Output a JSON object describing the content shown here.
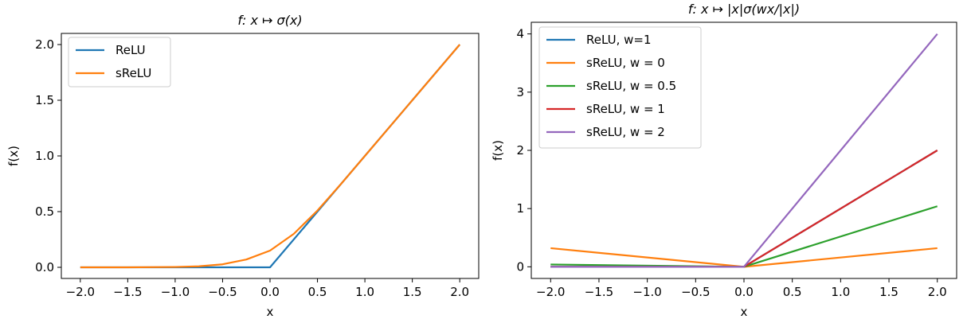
{
  "chart_data": [
    {
      "type": "line",
      "title": "f: x ↦ σ(x)",
      "xlabel": "x",
      "ylabel": "f(x)",
      "xlim": [
        -2.2,
        2.2
      ],
      "ylim": [
        -0.1,
        2.1
      ],
      "xticks": [
        -2.0,
        -1.5,
        -1.0,
        -0.5,
        0.0,
        0.5,
        1.0,
        1.5,
        2.0
      ],
      "xtick_labels": [
        "−2.0",
        "−1.5",
        "−1.0",
        "−0.5",
        "0.0",
        "0.5",
        "1.0",
        "1.5",
        "2.0"
      ],
      "yticks": [
        0.0,
        0.5,
        1.0,
        1.5,
        2.0
      ],
      "ytick_labels": [
        "0.0",
        "0.5",
        "1.0",
        "1.5",
        "2.0"
      ],
      "grid": false,
      "legend_position": "top-left",
      "series": [
        {
          "name": "ReLU",
          "color": "#1f77b4",
          "x": [
            -2.0,
            -1.5,
            -1.0,
            -0.5,
            0.0,
            0.5,
            1.0,
            1.5,
            2.0
          ],
          "y": [
            0.0,
            0.0,
            0.0,
            0.0,
            0.0,
            0.5,
            1.0,
            1.5,
            2.0
          ]
        },
        {
          "name": "sReLU",
          "color": "#ff7f0e",
          "x": [
            -2.0,
            -1.5,
            -1.0,
            -0.75,
            -0.5,
            -0.25,
            0.0,
            0.25,
            0.5,
            0.75,
            1.0,
            1.5,
            2.0
          ],
          "y": [
            0.0,
            0.0,
            0.003,
            0.009,
            0.027,
            0.07,
            0.15,
            0.3,
            0.51,
            0.75,
            1.0,
            1.5,
            2.0
          ]
        }
      ]
    },
    {
      "type": "line",
      "title": "f: x ↦ |x|σ(wx/|x|)",
      "xlabel": "x",
      "ylabel": "f(x)",
      "xlim": [
        -2.2,
        2.2
      ],
      "ylim": [
        -0.2,
        4.2
      ],
      "xticks": [
        -2.0,
        -1.5,
        -1.0,
        -0.5,
        0.0,
        0.5,
        1.0,
        1.5,
        2.0
      ],
      "xtick_labels": [
        "−2.0",
        "−1.5",
        "−1.0",
        "−0.5",
        "0.0",
        "0.5",
        "1.0",
        "1.5",
        "2.0"
      ],
      "yticks": [
        0,
        1,
        2,
        3,
        4
      ],
      "ytick_labels": [
        "0",
        "1",
        "2",
        "3",
        "4"
      ],
      "grid": false,
      "legend_position": "top-left",
      "series": [
        {
          "name": "ReLU, w=1",
          "color": "#1f77b4",
          "x": [
            -2.0,
            0.0,
            2.0
          ],
          "y": [
            0.0,
            0.0,
            2.0
          ]
        },
        {
          "name": "sReLU, w = 0",
          "color": "#ff7f0e",
          "x": [
            -2.0,
            0.0,
            2.0
          ],
          "y": [
            0.32,
            0.0,
            0.32
          ]
        },
        {
          "name": "sReLU, w = 0.5",
          "color": "#2ca02c",
          "x": [
            -2.0,
            0.0,
            2.0
          ],
          "y": [
            0.04,
            0.0,
            1.04
          ]
        },
        {
          "name": "sReLU, w = 1",
          "color": "#d62728",
          "x": [
            -2.0,
            0.0,
            2.0
          ],
          "y": [
            0.0,
            0.0,
            2.0
          ]
        },
        {
          "name": "sReLU, w = 2",
          "color": "#9467bd",
          "x": [
            -2.0,
            0.0,
            2.0
          ],
          "y": [
            0.0,
            0.0,
            4.0
          ]
        }
      ]
    }
  ]
}
